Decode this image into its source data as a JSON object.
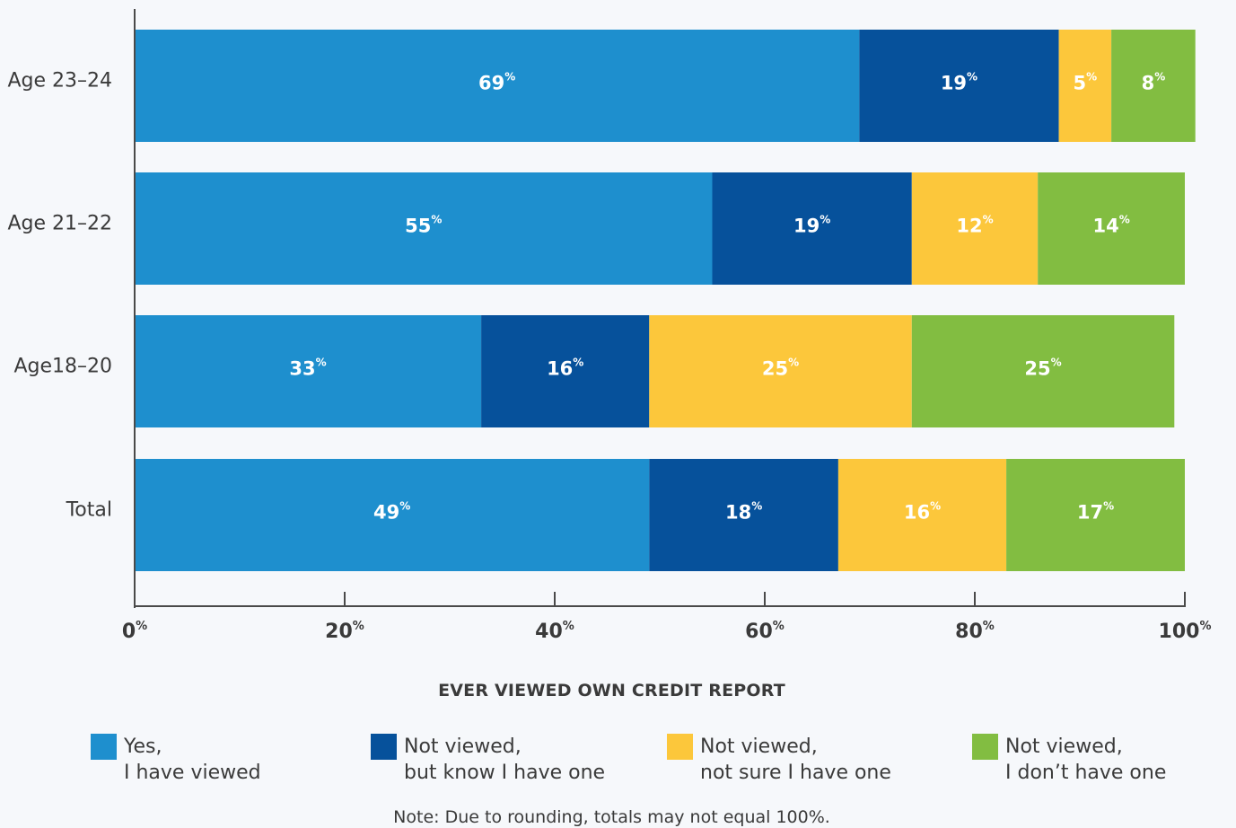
{
  "chart_data": {
    "type": "bar",
    "orientation": "horizontal",
    "stacked": true,
    "categories": [
      "Age 23–24",
      "Age 21–22",
      "Age18–20",
      "Total"
    ],
    "series": [
      {
        "name": "Yes, I have viewed",
        "name_lines": [
          "Yes,",
          "I have viewed"
        ],
        "color": "#1e8fce",
        "values": [
          69,
          55,
          33,
          49
        ]
      },
      {
        "name": "Not viewed, but know I have one",
        "name_lines": [
          "Not viewed,",
          "but know I have one"
        ],
        "color": "#06519b",
        "values": [
          19,
          19,
          16,
          18
        ]
      },
      {
        "name": "Not viewed, not sure I have one",
        "name_lines": [
          "Not viewed,",
          "not sure I have one"
        ],
        "color": "#fcc73b",
        "values": [
          5,
          12,
          25,
          16
        ]
      },
      {
        "name": "Not viewed, I don’t have one",
        "name_lines": [
          "Not viewed,",
          "I don’t have one"
        ],
        "color": "#82bd41",
        "values": [
          8,
          14,
          25,
          17
        ]
      }
    ],
    "xlim": [
      0,
      100
    ],
    "xticks": [
      0,
      20,
      40,
      60,
      80,
      100
    ],
    "tick_suffix": "%",
    "xlabel": "EVER VIEWED OWN CREDIT REPORT",
    "value_suffix": "%",
    "legend_position": "bottom",
    "note": "Note: Due to rounding, totals may not equal 100%."
  }
}
